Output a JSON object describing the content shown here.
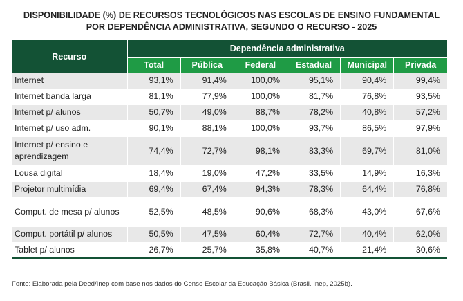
{
  "title_line1": "DISPONIBILIDADE (%) DE RECURSOS TECNOLÓGICOS NAS ESCOLAS DE ENSINO FUNDAMENTAL",
  "title_line2": "POR DEPENDÊNCIA ADMINISTRATIVA, SEGUNDO O RECURSO - 2025",
  "header": {
    "recurso": "Recurso",
    "dependencia": "Dependência administrativa",
    "columns": [
      "Total",
      "Pública",
      "Federal",
      "Estadual",
      "Municipal",
      "Privada"
    ]
  },
  "rows": [
    {
      "label": "Internet",
      "values": [
        "93,1%",
        "91,4%",
        "100,0%",
        "95,1%",
        "90,4%",
        "99,4%"
      ]
    },
    {
      "label": "Internet banda larga",
      "values": [
        "81,1%",
        "77,9%",
        "100,0%",
        "81,7%",
        "76,8%",
        "93,5%"
      ]
    },
    {
      "label": "Internet p/ alunos",
      "values": [
        "50,7%",
        "49,0%",
        "88,7%",
        "78,2%",
        "40,8%",
        "57,2%"
      ]
    },
    {
      "label": "Internet p/ uso adm.",
      "values": [
        "90,1%",
        "88,1%",
        "100,0%",
        "93,7%",
        "86,5%",
        "97,9%"
      ]
    },
    {
      "label": "Internet p/ ensino e aprendizagem",
      "values": [
        "74,4%",
        "72,7%",
        "98,1%",
        "83,3%",
        "69,7%",
        "81,0%"
      ]
    },
    {
      "label": "Lousa digital",
      "values": [
        "18,4%",
        "19,0%",
        "47,2%",
        "33,5%",
        "14,9%",
        "16,3%"
      ]
    },
    {
      "label": "Projetor multimídia",
      "values": [
        "69,4%",
        "67,4%",
        "94,3%",
        "78,3%",
        "64,4%",
        "76,8%"
      ]
    },
    {
      "label": "Comput. de mesa p/ alunos",
      "values": [
        "52,5%",
        "48,5%",
        "90,6%",
        "68,3%",
        "43,0%",
        "67,6%"
      ]
    },
    {
      "label": "Comput. portátil p/ alunos",
      "values": [
        "50,5%",
        "47,5%",
        "60,4%",
        "72,7%",
        "40,4%",
        "62,0%"
      ]
    },
    {
      "label": "Tablet p/ alunos",
      "values": [
        "26,7%",
        "25,7%",
        "35,8%",
        "40,7%",
        "21,4%",
        "30,6%"
      ]
    }
  ],
  "footnote": "Fonte: Elaborada pela Deed/Inep com base nos dados do Censo Escolar da Educação Básica (Brasil. Inep, 2025b).",
  "colors": {
    "header_dark": "#135235",
    "header_green": "#1f9b45",
    "row_shade": "#e8e8e8"
  }
}
